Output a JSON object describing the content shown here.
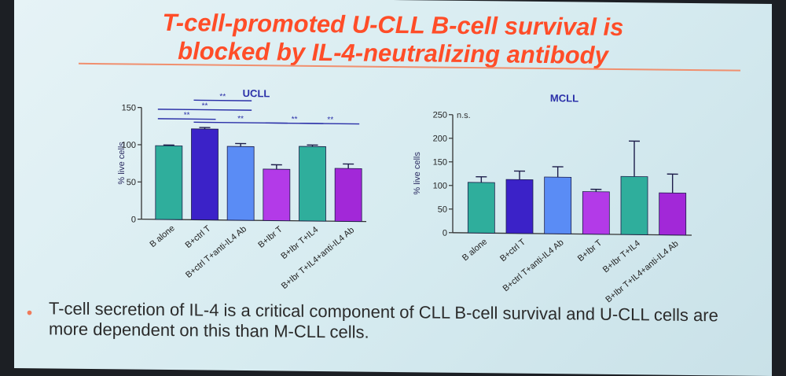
{
  "slide": {
    "title_lines": [
      "T-cell-promoted U-CLL B-cell survival is",
      "blocked by IL-4-neutralizing antibody"
    ],
    "bullet": "T-cell secretion of IL-4 is a critical component of CLL B-cell survival and U-CLL cells are more dependent on this than M-CLL cells."
  },
  "chart_data": [
    {
      "type": "bar",
      "title": "UCLL",
      "ylabel": "% live cells",
      "ylim": [
        0,
        150
      ],
      "yticks": [
        0,
        50,
        100,
        150
      ],
      "categories": [
        "B alone",
        "B+ctrl T",
        "B+ctrl T+anti-IL4 Ab",
        "B+Ibr T",
        "B+Ibr T+IL4",
        "B+Ibr T+IL4+anti-IL4 Ab"
      ],
      "values": [
        99,
        122,
        99,
        69,
        100,
        71
      ],
      "errors": [
        1,
        2,
        4,
        6,
        2,
        6
      ],
      "colors": [
        "#2fae9c",
        "#3b22c8",
        "#5a8cf5",
        "#b33ae8",
        "#2fae9c",
        "#a228d8"
      ],
      "significance": [
        {
          "from": 0,
          "to": 1,
          "label": "**"
        },
        {
          "from": 0,
          "to": 2,
          "label": "**"
        },
        {
          "from": 1,
          "to": 2,
          "label": "**"
        },
        {
          "from": 1,
          "to": 3,
          "label": "**"
        },
        {
          "from": 3,
          "to": 4,
          "label": "**"
        },
        {
          "from": 4,
          "to": 5,
          "label": "**"
        }
      ]
    },
    {
      "type": "bar",
      "title": "MCLL",
      "ylabel": "% live cells",
      "ylim": [
        0,
        250
      ],
      "yticks": [
        0,
        50,
        100,
        150,
        200,
        250
      ],
      "categories": [
        "B alone",
        "B+ctrl T",
        "B+ctrl T+anti-IL4 Ab",
        "B+Ibr T",
        "B+Ibr T+IL4",
        "B+Ibr T+IL4+anti-IL4 Ab"
      ],
      "values": [
        107,
        114,
        120,
        90,
        123,
        89
      ],
      "errors": [
        12,
        18,
        22,
        5,
        75,
        40
      ],
      "colors": [
        "#2fae9c",
        "#3b22c8",
        "#5a8cf5",
        "#b33ae8",
        "#2fae9c",
        "#a228d8"
      ],
      "annotation": "n.s."
    }
  ]
}
